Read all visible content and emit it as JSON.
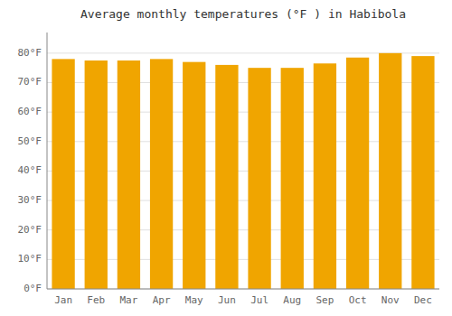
{
  "chart_data": {
    "type": "bar",
    "title": "Average monthly temperatures (°F ) in Habibola",
    "categories": [
      "Jan",
      "Feb",
      "Mar",
      "Apr",
      "May",
      "Jun",
      "Jul",
      "Aug",
      "Sep",
      "Oct",
      "Nov",
      "Dec"
    ],
    "values": [
      78.0,
      77.5,
      77.5,
      78.0,
      77.0,
      76.0,
      75.0,
      75.0,
      76.5,
      78.5,
      80.0,
      79.0
    ],
    "color": "#F0A500",
    "ylim": [
      0,
      87
    ],
    "yticks": [
      {
        "value": 0,
        "label": "0°F"
      },
      {
        "value": 10,
        "label": "10°F"
      },
      {
        "value": 20,
        "label": "20°F"
      },
      {
        "value": 30,
        "label": "30°F"
      },
      {
        "value": 40,
        "label": "40°F"
      },
      {
        "value": 50,
        "label": "50°F"
      },
      {
        "value": 60,
        "label": "60°F"
      },
      {
        "value": 70,
        "label": "70°F"
      },
      {
        "value": 80,
        "label": "80°F"
      }
    ],
    "grid": true
  }
}
